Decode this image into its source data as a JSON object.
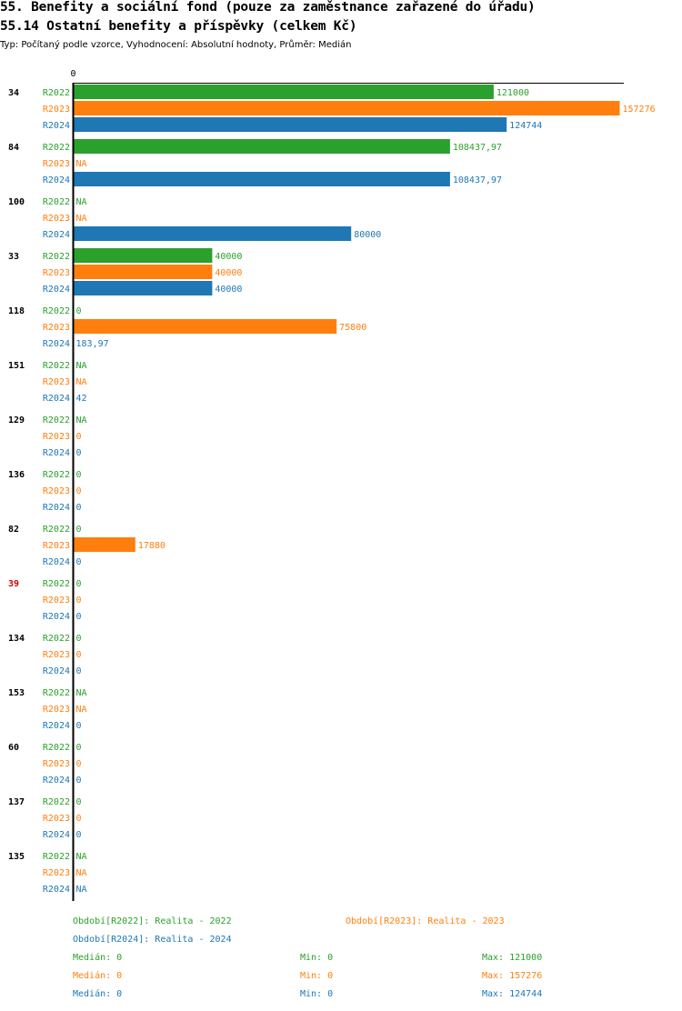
{
  "header": {
    "title": "55. Benefity a sociální fond (pouze za zaměstnance zařazené do úřadu)",
    "subtitle": "55.14 Ostatní benefity a příspěvky (celkem Kč)",
    "meta": "Typ: Počítaný podle vzorce, Vyhodnocení: Absolutní hodnoty, Průměr: Medián"
  },
  "chart_data": {
    "type": "bar",
    "orientation": "horizontal",
    "title": "55.14 Ostatní benefity a příspěvky (celkem Kč)",
    "axis_zero_label": "0",
    "xlim": [
      0,
      157276
    ],
    "series": [
      {
        "name": "R2022",
        "color": "#2ca02c"
      },
      {
        "name": "R2023",
        "color": "#ff7f0e"
      },
      {
        "name": "R2024",
        "color": "#1f77b4"
      }
    ],
    "groups": [
      {
        "label": "34",
        "highlight": false,
        "values": [
          121000,
          157276,
          124744
        ],
        "labels": [
          "121000",
          "157276",
          "124744"
        ]
      },
      {
        "label": "84",
        "highlight": false,
        "values": [
          108437.97,
          null,
          108437.97
        ],
        "labels": [
          "108437,97",
          "NA",
          "108437,97"
        ]
      },
      {
        "label": "100",
        "highlight": false,
        "values": [
          null,
          null,
          80000
        ],
        "labels": [
          "NA",
          "NA",
          "80000"
        ]
      },
      {
        "label": "33",
        "highlight": false,
        "values": [
          40000,
          40000,
          40000
        ],
        "labels": [
          "40000",
          "40000",
          "40000"
        ]
      },
      {
        "label": "118",
        "highlight": false,
        "values": [
          0,
          75800,
          183.97
        ],
        "labels": [
          "0",
          "75800",
          "183,97"
        ]
      },
      {
        "label": "151",
        "highlight": false,
        "values": [
          null,
          null,
          42
        ],
        "labels": [
          "NA",
          "NA",
          "42"
        ]
      },
      {
        "label": "129",
        "highlight": false,
        "values": [
          null,
          0,
          0
        ],
        "labels": [
          "NA",
          "0",
          "0"
        ]
      },
      {
        "label": "136",
        "highlight": false,
        "values": [
          0,
          0,
          0
        ],
        "labels": [
          "0",
          "0",
          "0"
        ]
      },
      {
        "label": "82",
        "highlight": false,
        "values": [
          0,
          17880,
          0
        ],
        "labels": [
          "0",
          "17880",
          "0"
        ]
      },
      {
        "label": "39",
        "highlight": true,
        "values": [
          0,
          0,
          0
        ],
        "labels": [
          "0",
          "0",
          "0"
        ]
      },
      {
        "label": "134",
        "highlight": false,
        "values": [
          0,
          0,
          0
        ],
        "labels": [
          "0",
          "0",
          "0"
        ]
      },
      {
        "label": "153",
        "highlight": false,
        "values": [
          null,
          null,
          0
        ],
        "labels": [
          "NA",
          "NA",
          "0"
        ]
      },
      {
        "label": "60",
        "highlight": false,
        "values": [
          0,
          0,
          0
        ],
        "labels": [
          "0",
          "0",
          "0"
        ]
      },
      {
        "label": "137",
        "highlight": false,
        "values": [
          0,
          0,
          0
        ],
        "labels": [
          "0",
          "0",
          "0"
        ]
      },
      {
        "label": "135",
        "highlight": false,
        "values": [
          null,
          null,
          null
        ],
        "labels": [
          "NA",
          "NA",
          "NA"
        ]
      }
    ]
  },
  "legend": {
    "periods": [
      {
        "text": "Období[R2022]: Realita - 2022",
        "color": "#2ca02c"
      },
      {
        "text": "Období[R2023]: Realita - 2023",
        "color": "#ff7f0e"
      },
      {
        "text": "Období[R2024]: Realita - 2024",
        "color": "#1f77b4"
      }
    ],
    "stats": [
      {
        "median": "Medián: 0",
        "min": "Min: 0",
        "max": "Max: 121000",
        "color": "#2ca02c"
      },
      {
        "median": "Medián: 0",
        "min": "Min: 0",
        "max": "Max: 157276",
        "color": "#ff7f0e"
      },
      {
        "median": "Medián: 0",
        "min": "Min: 0",
        "max": "Max: 124744",
        "color": "#1f77b4"
      }
    ]
  }
}
